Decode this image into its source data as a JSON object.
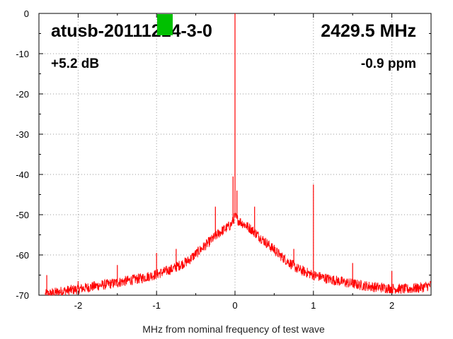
{
  "chart_data": {
    "type": "line",
    "title": "atusb-20111214-3-0",
    "frequency_label": "2429.5 MHz",
    "gain_label": "+5.2 dB",
    "ppm_label": "-0.9 ppm",
    "xlabel": "MHz from nominal frequency of test wave",
    "ylabel": "",
    "xlim": [
      -2.5,
      2.5
    ],
    "ylim": [
      -70,
      0
    ],
    "xticks": [
      -2,
      -1,
      0,
      1,
      2
    ],
    "yticks": [
      0,
      -10,
      -20,
      -30,
      -40,
      -50,
      -60,
      -70
    ],
    "grid": true,
    "series": [
      {
        "color": "#ff0000",
        "envelope": [
          [
            -2.4,
            -69.8
          ],
          [
            -2.2,
            -69.0
          ],
          [
            -2.0,
            -68.5
          ],
          [
            -1.8,
            -67.8
          ],
          [
            -1.6,
            -67.2
          ],
          [
            -1.4,
            -66.5
          ],
          [
            -1.2,
            -65.8
          ],
          [
            -1.0,
            -64.8
          ],
          [
            -0.8,
            -63.5
          ],
          [
            -0.6,
            -61.5
          ],
          [
            -0.4,
            -58.0
          ],
          [
            -0.2,
            -54.5
          ],
          [
            -0.05,
            -52.5
          ],
          [
            0.0,
            -50.5
          ],
          [
            0.05,
            -51.5
          ],
          [
            0.2,
            -53.5
          ],
          [
            0.4,
            -57.0
          ],
          [
            0.6,
            -60.5
          ],
          [
            0.8,
            -63.5
          ],
          [
            1.0,
            -65.0
          ],
          [
            1.2,
            -66.0
          ],
          [
            1.4,
            -66.8
          ],
          [
            1.6,
            -67.5
          ],
          [
            1.8,
            -68.0
          ],
          [
            2.0,
            -68.3
          ],
          [
            2.2,
            -68.5
          ],
          [
            2.4,
            -68.0
          ],
          [
            2.5,
            -67.5
          ]
        ],
        "spurs": [
          [
            0.0,
            0.0
          ],
          [
            -0.025,
            -40.5
          ],
          [
            0.025,
            -44.0
          ],
          [
            1.0,
            -42.5
          ],
          [
            -0.25,
            -48.0
          ],
          [
            0.25,
            -48.0
          ],
          [
            -1.0,
            -59.5
          ],
          [
            -1.5,
            -62.5
          ],
          [
            -0.75,
            -58.5
          ],
          [
            0.75,
            -58.5
          ],
          [
            -2.0,
            -66.5
          ],
          [
            -2.4,
            -65.0
          ],
          [
            0.5,
            -57.5
          ],
          [
            1.5,
            -62.0
          ],
          [
            2.0,
            -64.0
          ]
        ]
      }
    ]
  },
  "indicator": {
    "color": "#00c000"
  }
}
